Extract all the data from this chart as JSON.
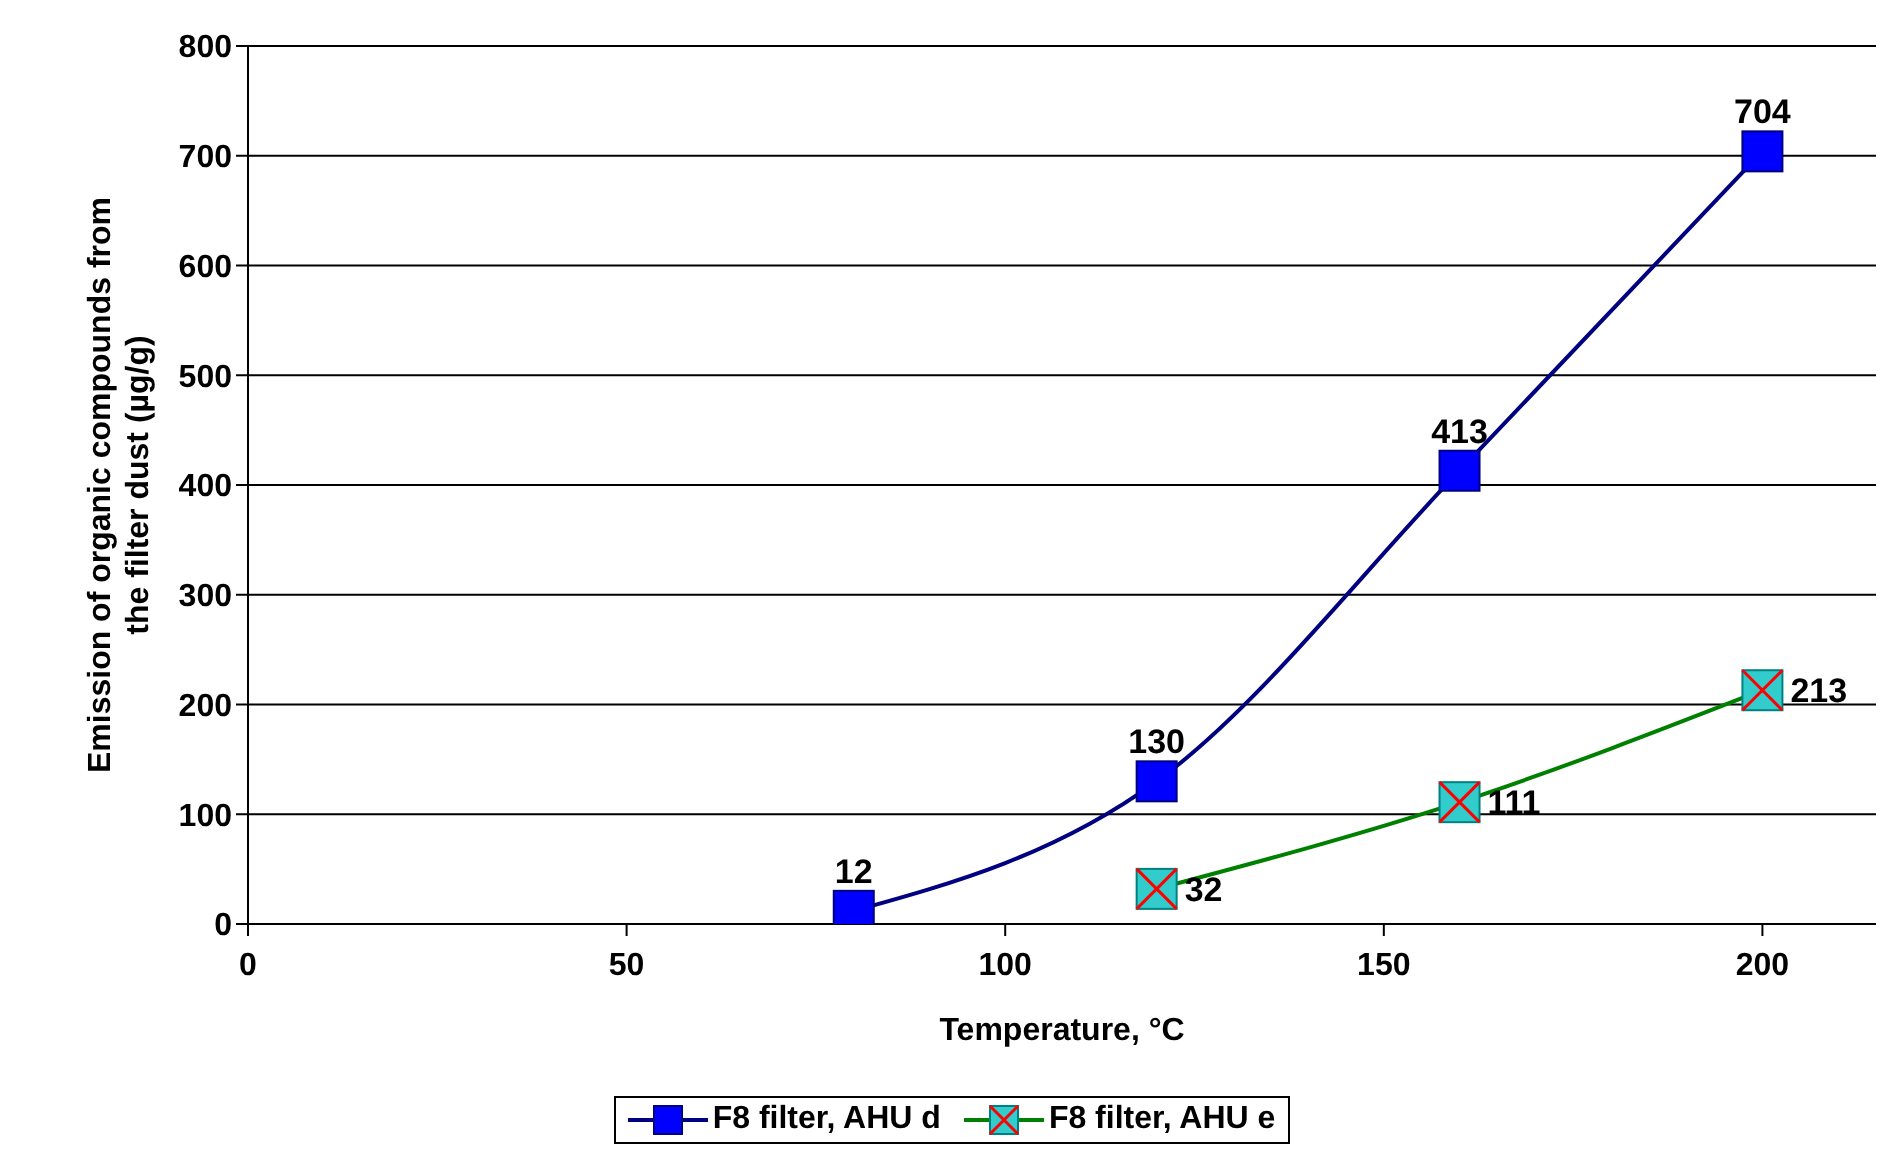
{
  "chart_data": {
    "type": "line",
    "xlabel": "Temperature, °C",
    "ylabel": "Emission of organic compounds from the filter dust (µg/g)",
    "series": [
      {
        "name": "F8 filter, AHU d",
        "color": "#000080",
        "marker": "square",
        "x": [
          80,
          120,
          160,
          200
        ],
        "values": [
          12,
          130,
          413,
          704
        ]
      },
      {
        "name": "F8 filter, AHU e",
        "color": "#008000",
        "marker": "square",
        "x": [
          120,
          160,
          200
        ],
        "values": [
          32,
          111,
          213
        ]
      }
    ],
    "xlim": [
      0,
      215
    ],
    "xticks": [
      0,
      50,
      100,
      150,
      200
    ],
    "ylim": [
      0,
      800
    ],
    "yticks": [
      0,
      100,
      200,
      300,
      400,
      500,
      600,
      700,
      800
    ],
    "grid": "y",
    "legend": "bottom",
    "data_labels": true
  }
}
